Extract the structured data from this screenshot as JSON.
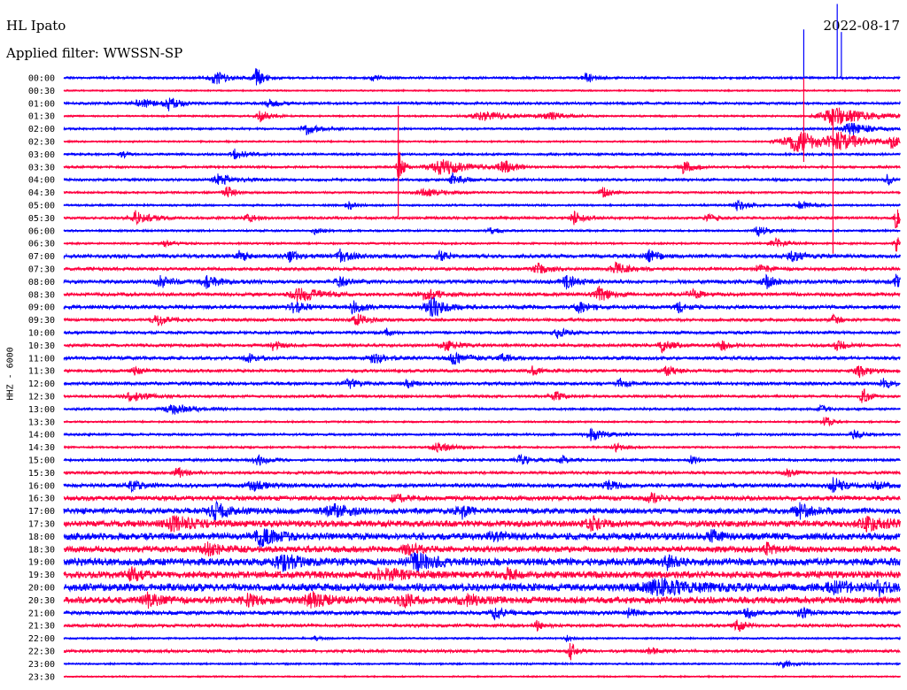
{
  "header": {
    "station": "HL Ipato",
    "date": "2022-08-17",
    "filter": "Applied filter: WWSSN-SP"
  },
  "channel": "HHZ - 6000",
  "colors": {
    "even_row": "#0000ff",
    "odd_row": "#ff0040",
    "background": "#ffffff"
  },
  "chart_data": {
    "type": "line",
    "title": "",
    "xlabel": "",
    "ylabel": "HHZ - 6000",
    "row_labels": [
      "00:00",
      "00:30",
      "01:00",
      "01:30",
      "02:00",
      "02:30",
      "03:00",
      "03:30",
      "04:00",
      "04:30",
      "05:00",
      "05:30",
      "06:00",
      "06:30",
      "07:00",
      "07:30",
      "08:00",
      "08:30",
      "09:00",
      "09:30",
      "10:00",
      "10:30",
      "11:00",
      "11:30",
      "12:00",
      "12:30",
      "13:00",
      "13:30",
      "14:00",
      "14:30",
      "15:00",
      "15:30",
      "16:00",
      "16:30",
      "17:00",
      "17:30",
      "18:00",
      "18:30",
      "19:00",
      "19:30",
      "20:00",
      "20:30",
      "21:00",
      "21:30",
      "22:00",
      "22:30",
      "23:00",
      "23:30"
    ],
    "row_interval_minutes": 30,
    "noise_level": [
      0.18,
      0.12,
      0.2,
      0.14,
      0.16,
      0.14,
      0.18,
      0.18,
      0.2,
      0.16,
      0.16,
      0.2,
      0.16,
      0.16,
      0.28,
      0.24,
      0.28,
      0.26,
      0.28,
      0.22,
      0.22,
      0.22,
      0.26,
      0.22,
      0.24,
      0.2,
      0.18,
      0.14,
      0.18,
      0.16,
      0.2,
      0.22,
      0.3,
      0.34,
      0.42,
      0.48,
      0.52,
      0.46,
      0.56,
      0.52,
      0.58,
      0.5,
      0.3,
      0.24,
      0.14,
      0.22,
      0.14,
      0.12
    ],
    "events": [
      {
        "row": 0,
        "pos": 0.18,
        "amp": 1.1,
        "dur": 0.012
      },
      {
        "row": 0,
        "pos": 0.23,
        "amp": 1.6,
        "dur": 0.008
      },
      {
        "row": 0,
        "pos": 0.37,
        "amp": 0.5,
        "dur": 0.006
      },
      {
        "row": 0,
        "pos": 0.625,
        "amp": 1.2,
        "dur": 0.007
      },
      {
        "row": 2,
        "pos": 0.09,
        "amp": 0.8,
        "dur": 0.015
      },
      {
        "row": 2,
        "pos": 0.125,
        "amp": 1.0,
        "dur": 0.01
      },
      {
        "row": 2,
        "pos": 0.245,
        "amp": 0.8,
        "dur": 0.008
      },
      {
        "row": 3,
        "pos": 0.5,
        "amp": 0.7,
        "dur": 0.03
      },
      {
        "row": 3,
        "pos": 0.58,
        "amp": 0.6,
        "dur": 0.018
      },
      {
        "row": 3,
        "pos": 0.92,
        "amp": 1.6,
        "dur": 0.03
      },
      {
        "row": 3,
        "pos": 0.235,
        "amp": 0.9,
        "dur": 0.01
      },
      {
        "row": 4,
        "pos": 0.29,
        "amp": 0.9,
        "dur": 0.012
      },
      {
        "row": 4,
        "pos": 0.94,
        "amp": 1.1,
        "dur": 0.02
      },
      {
        "row": 5,
        "pos": 0.875,
        "amp": 1.8,
        "dur": 0.03
      },
      {
        "row": 5,
        "pos": 0.925,
        "amp": 1.4,
        "dur": 0.02
      },
      {
        "row": 5,
        "pos": 0.99,
        "amp": 1.2,
        "dur": 0.006
      },
      {
        "row": 6,
        "pos": 0.205,
        "amp": 1.0,
        "dur": 0.01
      },
      {
        "row": 6,
        "pos": 0.07,
        "amp": 0.6,
        "dur": 0.005
      },
      {
        "row": 7,
        "pos": 0.4,
        "amp": 3.0,
        "dur": 0.004
      },
      {
        "row": 7,
        "pos": 0.45,
        "amp": 1.4,
        "dur": 0.025
      },
      {
        "row": 7,
        "pos": 0.525,
        "amp": 1.0,
        "dur": 0.012
      },
      {
        "row": 7,
        "pos": 0.74,
        "amp": 1.0,
        "dur": 0.01
      },
      {
        "row": 8,
        "pos": 0.185,
        "amp": 0.9,
        "dur": 0.015
      },
      {
        "row": 8,
        "pos": 0.465,
        "amp": 1.0,
        "dur": 0.01
      },
      {
        "row": 8,
        "pos": 0.985,
        "amp": 1.2,
        "dur": 0.005
      },
      {
        "row": 9,
        "pos": 0.195,
        "amp": 0.9,
        "dur": 0.01
      },
      {
        "row": 9,
        "pos": 0.43,
        "amp": 0.6,
        "dur": 0.02
      },
      {
        "row": 9,
        "pos": 0.645,
        "amp": 1.0,
        "dur": 0.008
      },
      {
        "row": 10,
        "pos": 0.34,
        "amp": 0.8,
        "dur": 0.006
      },
      {
        "row": 10,
        "pos": 0.805,
        "amp": 0.8,
        "dur": 0.01
      },
      {
        "row": 10,
        "pos": 0.88,
        "amp": 0.7,
        "dur": 0.01
      },
      {
        "row": 11,
        "pos": 0.085,
        "amp": 1.1,
        "dur": 0.015
      },
      {
        "row": 11,
        "pos": 0.22,
        "amp": 0.8,
        "dur": 0.008
      },
      {
        "row": 11,
        "pos": 0.61,
        "amp": 1.0,
        "dur": 0.01
      },
      {
        "row": 11,
        "pos": 0.77,
        "amp": 0.9,
        "dur": 0.007
      },
      {
        "row": 11,
        "pos": 0.995,
        "amp": 2.2,
        "dur": 0.004
      },
      {
        "row": 12,
        "pos": 0.3,
        "amp": 0.7,
        "dur": 0.006
      },
      {
        "row": 12,
        "pos": 0.51,
        "amp": 0.6,
        "dur": 0.008
      },
      {
        "row": 12,
        "pos": 0.83,
        "amp": 0.8,
        "dur": 0.01
      },
      {
        "row": 13,
        "pos": 0.12,
        "amp": 0.5,
        "dur": 0.01
      },
      {
        "row": 13,
        "pos": 0.85,
        "amp": 0.9,
        "dur": 0.01
      },
      {
        "row": 13,
        "pos": 0.995,
        "amp": 1.4,
        "dur": 0.005
      },
      {
        "row": 14,
        "pos": 0.21,
        "amp": 0.8,
        "dur": 0.008
      },
      {
        "row": 14,
        "pos": 0.27,
        "amp": 0.8,
        "dur": 0.01
      },
      {
        "row": 14,
        "pos": 0.33,
        "amp": 1.0,
        "dur": 0.012
      },
      {
        "row": 14,
        "pos": 0.45,
        "amp": 0.8,
        "dur": 0.008
      },
      {
        "row": 14,
        "pos": 0.7,
        "amp": 0.9,
        "dur": 0.01
      },
      {
        "row": 14,
        "pos": 0.87,
        "amp": 0.8,
        "dur": 0.012
      },
      {
        "row": 15,
        "pos": 0.565,
        "amp": 0.9,
        "dur": 0.012
      },
      {
        "row": 15,
        "pos": 0.66,
        "amp": 1.0,
        "dur": 0.012
      },
      {
        "row": 15,
        "pos": 0.83,
        "amp": 0.7,
        "dur": 0.01
      },
      {
        "row": 16,
        "pos": 0.115,
        "amp": 1.0,
        "dur": 0.01
      },
      {
        "row": 16,
        "pos": 0.17,
        "amp": 1.0,
        "dur": 0.012
      },
      {
        "row": 16,
        "pos": 0.33,
        "amp": 0.8,
        "dur": 0.01
      },
      {
        "row": 16,
        "pos": 0.6,
        "amp": 1.0,
        "dur": 0.012
      },
      {
        "row": 16,
        "pos": 0.84,
        "amp": 1.0,
        "dur": 0.01
      },
      {
        "row": 16,
        "pos": 0.995,
        "amp": 1.2,
        "dur": 0.005
      },
      {
        "row": 17,
        "pos": 0.28,
        "amp": 1.2,
        "dur": 0.02
      },
      {
        "row": 17,
        "pos": 0.43,
        "amp": 1.0,
        "dur": 0.015
      },
      {
        "row": 17,
        "pos": 0.64,
        "amp": 1.2,
        "dur": 0.012
      },
      {
        "row": 17,
        "pos": 0.75,
        "amp": 0.8,
        "dur": 0.01
      },
      {
        "row": 18,
        "pos": 0.275,
        "amp": 1.0,
        "dur": 0.01
      },
      {
        "row": 18,
        "pos": 0.345,
        "amp": 1.0,
        "dur": 0.01
      },
      {
        "row": 18,
        "pos": 0.44,
        "amp": 1.6,
        "dur": 0.015
      },
      {
        "row": 18,
        "pos": 0.615,
        "amp": 1.0,
        "dur": 0.01
      },
      {
        "row": 18,
        "pos": 0.735,
        "amp": 0.8,
        "dur": 0.008
      },
      {
        "row": 19,
        "pos": 0.11,
        "amp": 1.0,
        "dur": 0.01
      },
      {
        "row": 19,
        "pos": 0.35,
        "amp": 1.0,
        "dur": 0.01
      },
      {
        "row": 19,
        "pos": 0.92,
        "amp": 0.8,
        "dur": 0.008
      },
      {
        "row": 20,
        "pos": 0.385,
        "amp": 0.8,
        "dur": 0.006
      },
      {
        "row": 20,
        "pos": 0.59,
        "amp": 0.8,
        "dur": 0.01
      },
      {
        "row": 21,
        "pos": 0.25,
        "amp": 0.7,
        "dur": 0.008
      },
      {
        "row": 21,
        "pos": 0.455,
        "amp": 1.0,
        "dur": 0.012
      },
      {
        "row": 21,
        "pos": 0.715,
        "amp": 1.0,
        "dur": 0.01
      },
      {
        "row": 21,
        "pos": 0.785,
        "amp": 0.8,
        "dur": 0.01
      },
      {
        "row": 21,
        "pos": 0.925,
        "amp": 0.8,
        "dur": 0.01
      },
      {
        "row": 22,
        "pos": 0.22,
        "amp": 0.8,
        "dur": 0.008
      },
      {
        "row": 22,
        "pos": 0.37,
        "amp": 1.0,
        "dur": 0.012
      },
      {
        "row": 22,
        "pos": 0.465,
        "amp": 1.0,
        "dur": 0.012
      },
      {
        "row": 22,
        "pos": 0.525,
        "amp": 0.8,
        "dur": 0.008
      },
      {
        "row": 23,
        "pos": 0.085,
        "amp": 0.8,
        "dur": 0.008
      },
      {
        "row": 23,
        "pos": 0.56,
        "amp": 0.7,
        "dur": 0.008
      },
      {
        "row": 23,
        "pos": 0.72,
        "amp": 0.8,
        "dur": 0.01
      },
      {
        "row": 23,
        "pos": 0.95,
        "amp": 1.0,
        "dur": 0.012
      },
      {
        "row": 24,
        "pos": 0.34,
        "amp": 0.8,
        "dur": 0.01
      },
      {
        "row": 24,
        "pos": 0.41,
        "amp": 0.7,
        "dur": 0.008
      },
      {
        "row": 24,
        "pos": 0.665,
        "amp": 0.7,
        "dur": 0.008
      },
      {
        "row": 24,
        "pos": 0.98,
        "amp": 1.0,
        "dur": 0.008
      },
      {
        "row": 25,
        "pos": 0.08,
        "amp": 0.9,
        "dur": 0.015
      },
      {
        "row": 25,
        "pos": 0.585,
        "amp": 0.9,
        "dur": 0.008
      },
      {
        "row": 25,
        "pos": 0.955,
        "amp": 1.4,
        "dur": 0.006
      },
      {
        "row": 26,
        "pos": 0.13,
        "amp": 0.9,
        "dur": 0.02
      },
      {
        "row": 26,
        "pos": 0.905,
        "amp": 0.5,
        "dur": 0.008
      },
      {
        "row": 27,
        "pos": 0.91,
        "amp": 1.2,
        "dur": 0.006
      },
      {
        "row": 28,
        "pos": 0.63,
        "amp": 1.0,
        "dur": 0.015
      },
      {
        "row": 28,
        "pos": 0.945,
        "amp": 0.9,
        "dur": 0.008
      },
      {
        "row": 29,
        "pos": 0.445,
        "amp": 0.8,
        "dur": 0.015
      },
      {
        "row": 29,
        "pos": 0.66,
        "amp": 0.6,
        "dur": 0.01
      },
      {
        "row": 30,
        "pos": 0.23,
        "amp": 1.0,
        "dur": 0.01
      },
      {
        "row": 30,
        "pos": 0.545,
        "amp": 0.7,
        "dur": 0.012
      },
      {
        "row": 30,
        "pos": 0.595,
        "amp": 0.7,
        "dur": 0.008
      },
      {
        "row": 30,
        "pos": 0.75,
        "amp": 0.6,
        "dur": 0.008
      },
      {
        "row": 31,
        "pos": 0.135,
        "amp": 0.8,
        "dur": 0.01
      },
      {
        "row": 31,
        "pos": 0.865,
        "amp": 0.6,
        "dur": 0.008
      },
      {
        "row": 32,
        "pos": 0.08,
        "amp": 0.8,
        "dur": 0.01
      },
      {
        "row": 32,
        "pos": 0.225,
        "amp": 0.9,
        "dur": 0.012
      },
      {
        "row": 32,
        "pos": 0.65,
        "amp": 0.8,
        "dur": 0.01
      },
      {
        "row": 32,
        "pos": 0.92,
        "amp": 1.2,
        "dur": 0.01
      },
      {
        "row": 32,
        "pos": 0.97,
        "amp": 0.8,
        "dur": 0.008
      },
      {
        "row": 33,
        "pos": 0.395,
        "amp": 1.0,
        "dur": 0.008
      },
      {
        "row": 33,
        "pos": 0.7,
        "amp": 0.8,
        "dur": 0.01
      },
      {
        "row": 34,
        "pos": 0.18,
        "amp": 1.2,
        "dur": 0.015
      },
      {
        "row": 34,
        "pos": 0.32,
        "amp": 1.0,
        "dur": 0.02
      },
      {
        "row": 34,
        "pos": 0.475,
        "amp": 1.2,
        "dur": 0.01
      },
      {
        "row": 34,
        "pos": 0.88,
        "amp": 1.0,
        "dur": 0.015
      },
      {
        "row": 35,
        "pos": 0.13,
        "amp": 1.2,
        "dur": 0.02
      },
      {
        "row": 35,
        "pos": 0.63,
        "amp": 1.0,
        "dur": 0.012
      },
      {
        "row": 35,
        "pos": 0.96,
        "amp": 1.2,
        "dur": 0.02
      },
      {
        "row": 36,
        "pos": 0.235,
        "amp": 1.4,
        "dur": 0.015
      },
      {
        "row": 36,
        "pos": 0.51,
        "amp": 0.8,
        "dur": 0.012
      },
      {
        "row": 36,
        "pos": 0.775,
        "amp": 0.8,
        "dur": 0.01
      },
      {
        "row": 37,
        "pos": 0.17,
        "amp": 1.0,
        "dur": 0.015
      },
      {
        "row": 37,
        "pos": 0.41,
        "amp": 0.9,
        "dur": 0.012
      },
      {
        "row": 37,
        "pos": 0.84,
        "amp": 0.8,
        "dur": 0.01
      },
      {
        "row": 38,
        "pos": 0.26,
        "amp": 1.3,
        "dur": 0.015
      },
      {
        "row": 38,
        "pos": 0.42,
        "amp": 1.2,
        "dur": 0.02
      },
      {
        "row": 38,
        "pos": 0.72,
        "amp": 1.0,
        "dur": 0.01
      },
      {
        "row": 39,
        "pos": 0.08,
        "amp": 1.0,
        "dur": 0.01
      },
      {
        "row": 39,
        "pos": 0.38,
        "amp": 1.1,
        "dur": 0.02
      },
      {
        "row": 39,
        "pos": 0.53,
        "amp": 0.8,
        "dur": 0.01
      },
      {
        "row": 40,
        "pos": 0.71,
        "amp": 1.0,
        "dur": 0.04
      },
      {
        "row": 40,
        "pos": 0.92,
        "amp": 0.8,
        "dur": 0.02
      },
      {
        "row": 40,
        "pos": 0.975,
        "amp": 1.0,
        "dur": 0.01
      },
      {
        "row": 41,
        "pos": 0.1,
        "amp": 1.0,
        "dur": 0.012
      },
      {
        "row": 41,
        "pos": 0.22,
        "amp": 0.8,
        "dur": 0.012
      },
      {
        "row": 41,
        "pos": 0.295,
        "amp": 1.2,
        "dur": 0.015
      },
      {
        "row": 41,
        "pos": 0.405,
        "amp": 1.0,
        "dur": 0.012
      },
      {
        "row": 41,
        "pos": 0.48,
        "amp": 1.0,
        "dur": 0.015
      },
      {
        "row": 42,
        "pos": 0.515,
        "amp": 1.2,
        "dur": 0.008
      },
      {
        "row": 42,
        "pos": 0.675,
        "amp": 0.8,
        "dur": 0.006
      },
      {
        "row": 42,
        "pos": 0.815,
        "amp": 1.0,
        "dur": 0.008
      },
      {
        "row": 42,
        "pos": 0.88,
        "amp": 0.9,
        "dur": 0.01
      },
      {
        "row": 43,
        "pos": 0.565,
        "amp": 0.8,
        "dur": 0.006
      },
      {
        "row": 43,
        "pos": 0.805,
        "amp": 1.0,
        "dur": 0.008
      },
      {
        "row": 44,
        "pos": 0.3,
        "amp": 0.4,
        "dur": 0.006
      },
      {
        "row": 44,
        "pos": 0.6,
        "amp": 0.5,
        "dur": 0.006
      },
      {
        "row": 45,
        "pos": 0.605,
        "amp": 1.6,
        "dur": 0.006
      },
      {
        "row": 45,
        "pos": 0.7,
        "amp": 0.6,
        "dur": 0.008
      },
      {
        "row": 46,
        "pos": 0.86,
        "amp": 0.6,
        "dur": 0.01
      }
    ],
    "spikes": [
      {
        "row": 0,
        "pos": 0.885,
        "up": 3.8
      },
      {
        "row": 0,
        "pos": 0.925,
        "up": 5.8
      },
      {
        "row": 0,
        "pos": 0.93,
        "up": 3.6
      },
      {
        "row": 3,
        "pos": 0.4,
        "up": 0.8,
        "down": 7.9
      },
      {
        "row": 3,
        "pos": 0.885,
        "up": 3.0,
        "down": 3.6
      },
      {
        "row": 3,
        "pos": 0.92,
        "up": 0.5,
        "down": 10.8
      }
    ]
  }
}
